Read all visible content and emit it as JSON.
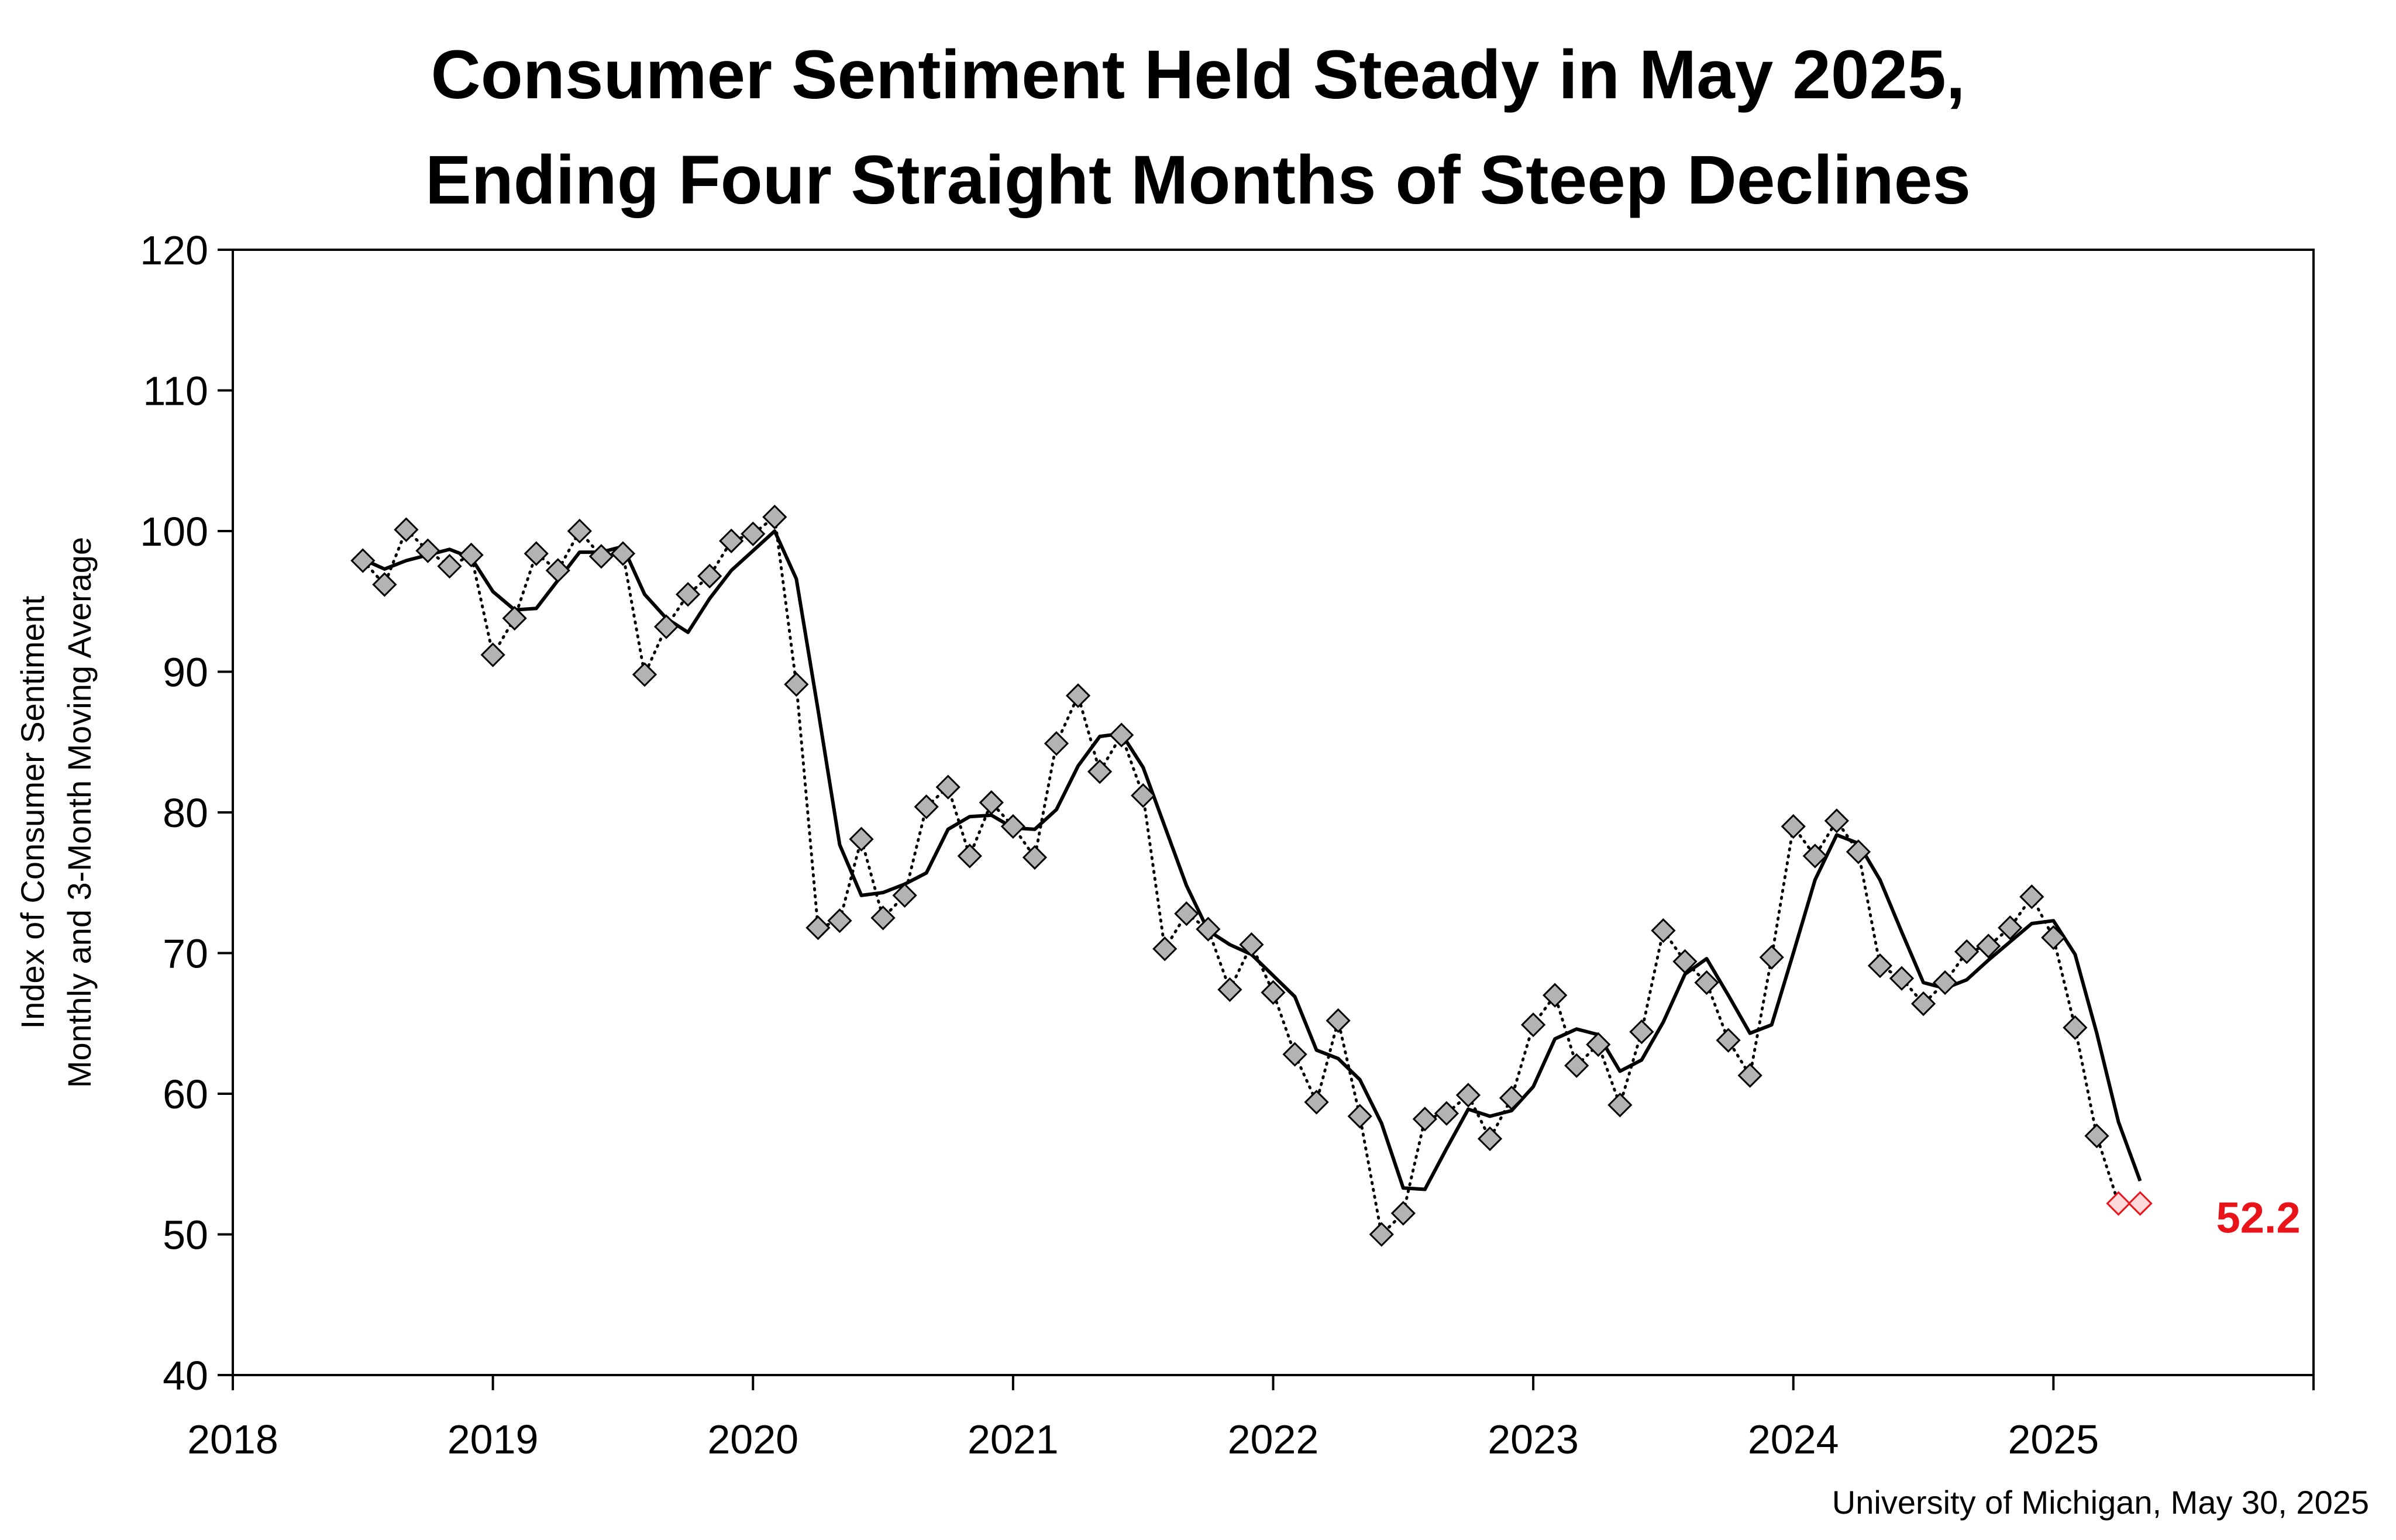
{
  "chart_data": {
    "type": "line",
    "title_lines": [
      "Consumer Sentiment Held Steady in May 2025,",
      "Ending Four Straight Months of Steep Declines"
    ],
    "ylabel_lines": [
      "Index of Consumer Sentiment",
      "Monthly and 3-Month Moving Average"
    ],
    "xlabel": "",
    "x_ticks": [
      "2018",
      "2019",
      "2020",
      "2021",
      "2022",
      "2023",
      "2024",
      "2025"
    ],
    "y_ticks": [
      "40",
      "50",
      "60",
      "70",
      "80",
      "90",
      "100",
      "110",
      "120"
    ],
    "ylim": [
      40,
      120
    ],
    "xlim": [
      2018,
      2026
    ],
    "grid": false,
    "start": "2018-07",
    "series": [
      {
        "name": "Monthly Index",
        "style": "dotted line with gray diamond markers",
        "values": [
          97.9,
          96.2,
          100.1,
          98.6,
          97.5,
          98.3,
          91.2,
          93.8,
          98.4,
          97.2,
          100.0,
          98.2,
          98.4,
          89.8,
          93.2,
          95.5,
          96.8,
          99.3,
          99.8,
          101.0,
          89.1,
          71.8,
          72.3,
          78.1,
          72.5,
          74.1,
          80.4,
          81.8,
          76.9,
          80.7,
          79.0,
          76.8,
          84.9,
          88.3,
          82.9,
          85.5,
          81.2,
          70.3,
          72.8,
          71.7,
          67.4,
          70.6,
          67.2,
          62.8,
          59.4,
          65.2,
          58.4,
          50.0,
          51.5,
          58.2,
          58.6,
          59.9,
          56.8,
          59.7,
          64.9,
          67.0,
          62.0,
          63.5,
          59.2,
          64.4,
          71.6,
          69.4,
          67.9,
          63.8,
          61.3,
          69.7,
          79.0,
          76.9,
          79.4,
          77.2,
          69.1,
          68.2,
          66.4,
          67.9,
          70.1,
          70.5,
          71.8,
          74.0,
          71.1,
          64.7,
          57.0,
          52.2,
          52.2
        ]
      },
      {
        "name": "3-Month Moving Average",
        "style": "solid black line",
        "values": [
          98.0,
          97.3,
          97.9,
          98.3,
          98.7,
          98.1,
          95.7,
          94.4,
          94.5,
          96.5,
          98.5,
          98.5,
          98.9,
          95.5,
          93.8,
          92.8,
          95.2,
          97.2,
          98.6,
          100.0,
          96.6,
          87.3,
          77.7,
          74.1,
          74.3,
          74.9,
          75.7,
          78.8,
          79.7,
          79.8,
          78.9,
          78.8,
          80.2,
          83.3,
          85.4,
          85.6,
          83.2,
          79.0,
          74.8,
          71.6,
          70.6,
          69.9,
          68.4,
          66.9,
          63.1,
          62.5,
          61.0,
          57.9,
          53.3,
          53.2,
          56.1,
          58.9,
          58.4,
          58.8,
          60.5,
          63.9,
          64.6,
          64.2,
          61.6,
          62.4,
          65.1,
          68.5,
          69.6,
          67.0,
          64.3,
          64.9,
          70.0,
          75.2,
          78.4,
          77.8,
          75.2,
          71.5,
          67.9,
          67.5,
          68.1,
          69.5,
          70.8,
          72.1,
          72.3,
          69.9,
          64.3,
          58.0,
          53.8
        ]
      }
    ],
    "highlight_last_points": 2,
    "last_value_label": "52.2",
    "colors": {
      "marker_fill": "#b3b3b3",
      "marker_stroke": "#000000",
      "highlight_fill": "#fdd9d9",
      "highlight_stroke": "#e8141a",
      "line": "#000000",
      "label": "#e8141a"
    }
  },
  "source": "University of Michigan, May 30, 2025"
}
